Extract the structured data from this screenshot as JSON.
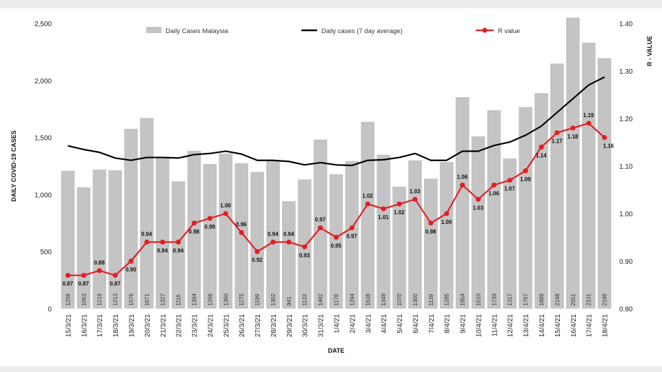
{
  "chart_data": {
    "type": "bar",
    "title": "",
    "xlabel": "DATE",
    "ylabel": "DAILY COVID-19 CASES",
    "y2label": "R - VALUE",
    "ylim": [
      0,
      2500
    ],
    "y2lim": [
      0.8,
      1.4
    ],
    "yticks": [
      "0",
      "500",
      "1,000",
      "1,500",
      "2,000",
      "2,500"
    ],
    "y2ticks": [
      "0.80",
      "0.90",
      "1.00",
      "1.10",
      "1.20",
      "1.30",
      "1.40"
    ],
    "legend_position": "top",
    "grid": false,
    "categories": [
      "15/3/21",
      "16/3/21",
      "17/3/21",
      "18/3/21",
      "19/3/21",
      "20/3/21",
      "21/3/21",
      "22/3/21",
      "23/3/21",
      "24/3/21",
      "25/3/21",
      "26/3/21",
      "27/3/21",
      "28/3/21",
      "29/3/21",
      "30/3/21",
      "31/3/21",
      "1/4/21",
      "2/4/21",
      "3/4/21",
      "4/4/21",
      "5/4/21",
      "6/4/21",
      "7/4/21",
      "8/4/21",
      "9/4/21",
      "10/4/21",
      "11/4/21",
      "12/4/21",
      "13/4/21",
      "14/4/21",
      "15/4/21",
      "16/4/21",
      "17/4/21",
      "18/4/21"
    ],
    "series": [
      {
        "name": "Daily Cases Malaysia",
        "kind": "bar",
        "axis": "left",
        "color": "#c4c4c4",
        "values": [
          1208,
          1063,
          1219,
          1213,
          1576,
          1671,
          1327,
          1116,
          1384,
          1268,
          1360,
          1275,
          1199,
          1302,
          941,
          1133,
          1482,
          1178,
          1294,
          1638,
          1349,
          1070,
          1300,
          1139,
          1285,
          1854,
          1510,
          1739,
          1317,
          1767,
          1889,
          2148,
          2551,
          2331,
          2196
        ],
        "labels": [
          "1208",
          "1063",
          "1219",
          "1213",
          "1576",
          "1671",
          "1327",
          "1116",
          "1384",
          "1268",
          "1360",
          "1275",
          "1199",
          "1302",
          "941",
          "1133",
          "1482",
          "1178",
          "1294",
          "1638",
          "1349",
          "1070",
          "1300",
          "1139",
          "1285",
          "1854",
          "1510",
          "1739",
          "1317",
          "1767",
          "1889",
          "2148",
          "2551",
          "2331",
          "2196"
        ]
      },
      {
        "name": "Daily cases (7 day average)",
        "kind": "line",
        "axis": "left",
        "color": "#000000",
        "values": [
          1427,
          1395,
          1370,
          1320,
          1300,
          1325,
          1325,
          1320,
          1350,
          1360,
          1380,
          1355,
          1300,
          1300,
          1290,
          1260,
          1280,
          1260,
          1255,
          1300,
          1305,
          1325,
          1360,
          1300,
          1300,
          1380,
          1380,
          1430,
          1460,
          1520,
          1600,
          1720,
          1840,
          1960,
          2030
        ]
      },
      {
        "name": "R value",
        "kind": "line-markers",
        "axis": "right",
        "color": "#e31e24",
        "values": [
          0.87,
          0.87,
          0.88,
          0.87,
          0.9,
          0.94,
          0.94,
          0.94,
          0.98,
          0.99,
          1.0,
          0.96,
          0.92,
          0.94,
          0.94,
          0.93,
          0.97,
          0.95,
          0.97,
          1.02,
          1.01,
          1.02,
          1.03,
          0.98,
          1.0,
          1.06,
          1.03,
          1.06,
          1.07,
          1.09,
          1.14,
          1.17,
          1.18,
          1.19,
          1.16
        ],
        "labels": [
          "0.87",
          "0.87",
          "0.88",
          "0.87",
          "0.90",
          "0.94",
          "0.94",
          "0.94",
          "0.98",
          "0.99",
          "1.00",
          "0.96",
          "0.92",
          "0.94",
          "0.94",
          "0.93",
          "0.97",
          "0.95",
          "0.97",
          "1.02",
          "1.01",
          "1.02",
          "1.03",
          "0.98",
          "1.00",
          "1.06",
          "1.03",
          "1.06",
          "1.07",
          "1.09",
          "1.14",
          "1.17",
          "1.18",
          "1.19",
          "1.16"
        ]
      }
    ]
  }
}
